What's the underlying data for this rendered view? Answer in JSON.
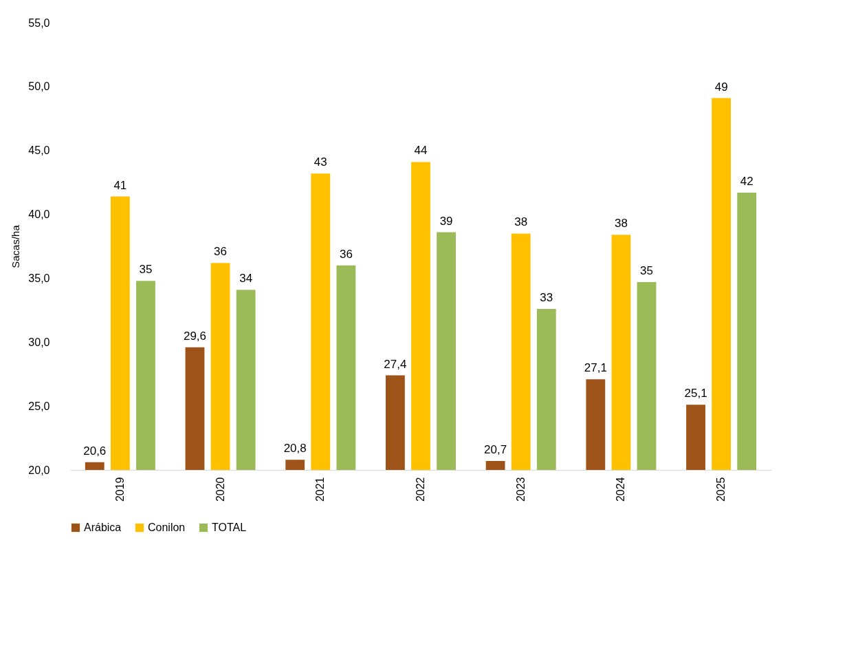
{
  "chart_data": {
    "type": "bar",
    "ylabel": "Sacas/ha",
    "categories": [
      "2019",
      "2020",
      "2021",
      "2022",
      "2023",
      "2024",
      "2025"
    ],
    "series": [
      {
        "name": "Arábica",
        "color": "#9e5418",
        "values": [
          20.6,
          29.6,
          20.8,
          27.4,
          20.7,
          27.1,
          25.1
        ],
        "value_labels": [
          "20,6",
          "29,6",
          "20,8",
          "27,4",
          "20,7",
          "27,1",
          "25,1"
        ]
      },
      {
        "name": "Conilon",
        "color": "#ffc000",
        "values": [
          41.4,
          36.2,
          43.2,
          44.1,
          38.5,
          38.4,
          49.1
        ],
        "value_labels": [
          "41",
          "36",
          "43",
          "44",
          "38",
          "38",
          "49"
        ]
      },
      {
        "name": "TOTAL",
        "color": "#9bbb59",
        "values": [
          34.8,
          34.1,
          36.0,
          38.6,
          32.6,
          34.7,
          41.7
        ],
        "value_labels": [
          "35",
          "34",
          "36",
          "39",
          "33",
          "35",
          "42"
        ]
      }
    ],
    "ylim": [
      20,
      55
    ],
    "yticks": [
      {
        "value": 20,
        "label": "20,0"
      },
      {
        "value": 25,
        "label": "25,0"
      },
      {
        "value": 30,
        "label": "30,0"
      },
      {
        "value": 35,
        "label": "35,0"
      },
      {
        "value": 40,
        "label": "40,0"
      },
      {
        "value": 45,
        "label": "45,0"
      },
      {
        "value": 50,
        "label": "50,0"
      },
      {
        "value": 55,
        "label": "55,0"
      }
    ],
    "legend": "bottom"
  }
}
